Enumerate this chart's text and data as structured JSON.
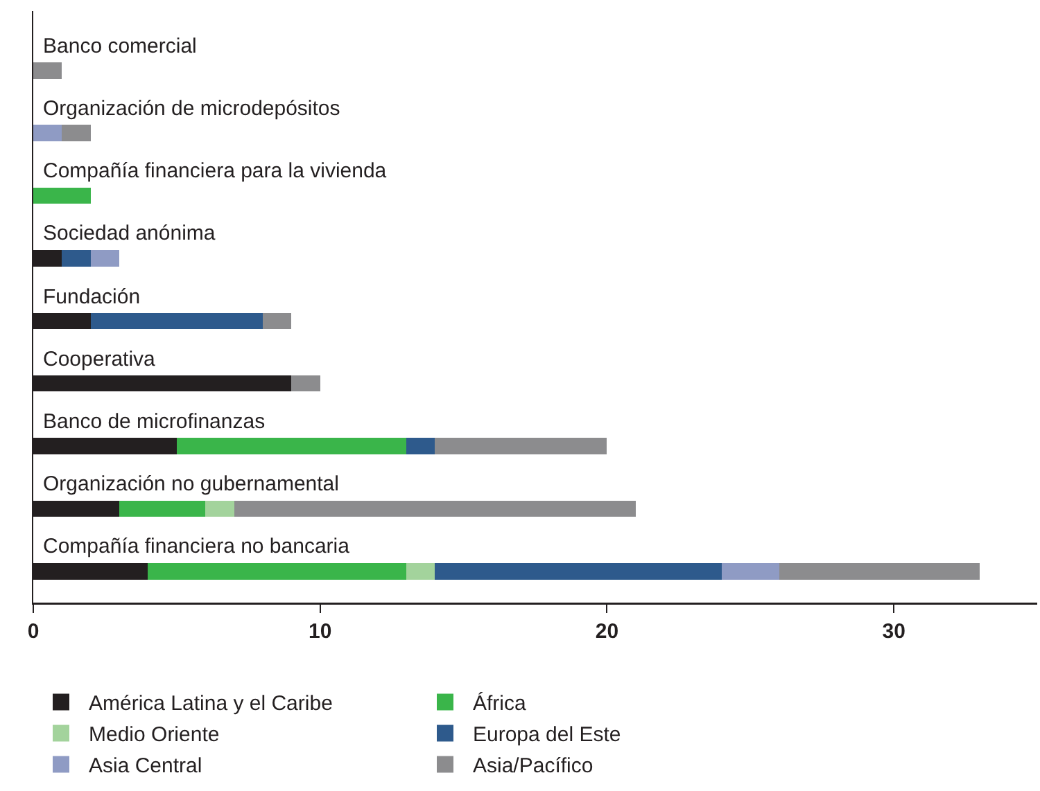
{
  "chart_data": {
    "type": "bar",
    "orientation": "horizontal",
    "stacked": true,
    "categories": [
      "Banco comercial",
      "Organización de microdepósitos",
      "Compañía financiera para la vivienda",
      "Sociedad anónima",
      "Fundación",
      "Cooperativa",
      "Banco de microfinanzas",
      "Organización no gubernamental",
      "Compañía financiera no bancaria"
    ],
    "series": [
      {
        "name": "América Latina y el Caribe",
        "color": "#231f20",
        "values": [
          0,
          0,
          0,
          1,
          2,
          9,
          5,
          3,
          4
        ]
      },
      {
        "name": "África",
        "color": "#3ab54a",
        "values": [
          0,
          0,
          2,
          0,
          0,
          0,
          8,
          3,
          9
        ]
      },
      {
        "name": "Medio Oriente",
        "color": "#a3d39c",
        "values": [
          0,
          0,
          0,
          0,
          0,
          0,
          0,
          1,
          1
        ]
      },
      {
        "name": "Europa del Este",
        "color": "#2e5a8c",
        "values": [
          0,
          0,
          0,
          1,
          6,
          0,
          1,
          0,
          10
        ]
      },
      {
        "name": "Asia Central",
        "color": "#8f9bc4",
        "values": [
          0,
          1,
          0,
          1,
          0,
          0,
          0,
          0,
          2
        ]
      },
      {
        "name": "Asia/Pacífico",
        "color": "#8c8c8e",
        "values": [
          1,
          1,
          0,
          0,
          1,
          1,
          6,
          14,
          7
        ]
      }
    ],
    "xlim": [
      0,
      35
    ],
    "xticks": [
      0,
      10,
      20,
      30
    ],
    "grid": false,
    "legend": "bottom"
  }
}
